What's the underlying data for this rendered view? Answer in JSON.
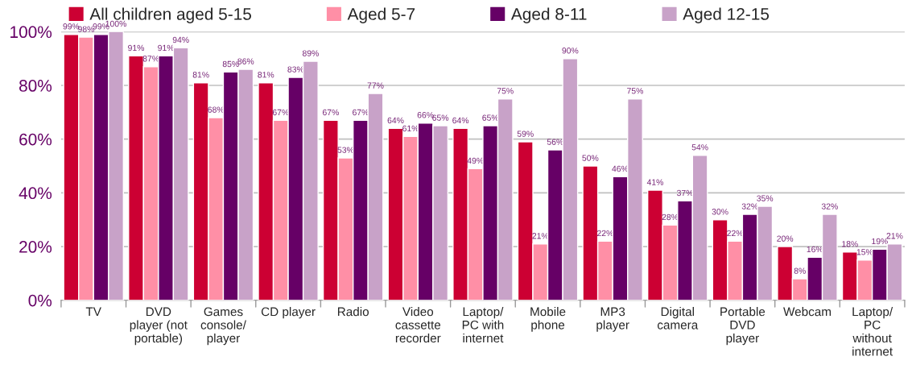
{
  "chart_data": {
    "type": "bar",
    "categories": [
      "TV",
      "DVD\nplayer (not\nportable)",
      "Games\nconsole/\nplayer",
      "CD player",
      "Radio",
      "Video\ncassette\nrecorder",
      "Laptop/\nPC with\ninternet",
      "Mobile\nphone",
      "MP3\nplayer",
      "Digital\ncamera",
      "Portable\nDVD\nplayer",
      "Webcam",
      "Laptop/\nPC\nwithout\ninternet"
    ],
    "series": [
      {
        "name": "All children aged 5-15",
        "color": "#cc0033",
        "values": [
          99,
          91,
          81,
          81,
          67,
          64,
          64,
          59,
          50,
          41,
          30,
          20,
          18
        ],
        "value_labels": [
          "99%",
          "91%",
          "81%",
          "81%",
          "67%",
          "64%",
          "64%",
          "59%",
          "50%",
          "41%",
          "30%",
          "20%",
          "18%"
        ]
      },
      {
        "name": "Aged 5-7",
        "color": "#ff8fa6",
        "values": [
          98,
          87,
          68,
          67,
          53,
          61,
          49,
          21,
          22,
          28,
          22,
          8,
          15
        ],
        "value_labels": [
          "98%",
          "87%",
          "68%",
          "67%",
          "53%",
          "61%",
          "49%",
          "21%",
          "22%",
          "28%",
          "22%",
          "8%",
          "15%"
        ]
      },
      {
        "name": "Aged 8-11",
        "color": "#660066",
        "values": [
          99,
          91,
          85,
          83,
          67,
          66,
          65,
          56,
          46,
          37,
          32,
          16,
          19
        ],
        "value_labels": [
          "99%",
          "91%",
          "85%",
          "83%",
          "67%",
          "66%",
          "65%",
          "56%",
          "46%",
          "37%",
          "32%",
          "16%",
          "19%"
        ]
      },
      {
        "name": "Aged 12-15",
        "color": "#c8a2c8",
        "values": [
          100,
          94,
          86,
          89,
          77,
          65,
          75,
          90,
          75,
          54,
          35,
          32,
          21
        ],
        "value_labels": [
          "100%",
          "94%",
          "86%",
          "89%",
          "77%",
          "65%",
          "75%",
          "90%",
          "75%",
          "54%",
          "35%",
          "32%",
          "21%"
        ]
      }
    ],
    "ylim": [
      0,
      100
    ],
    "yticks": [
      {
        "value": 0,
        "label": "0%"
      },
      {
        "value": 20,
        "label": "20%"
      },
      {
        "value": 40,
        "label": "40%"
      },
      {
        "value": 60,
        "label": "60%"
      },
      {
        "value": 80,
        "label": "80%"
      },
      {
        "value": 100,
        "label": "100%"
      }
    ],
    "grid": "y",
    "legend": "top"
  }
}
